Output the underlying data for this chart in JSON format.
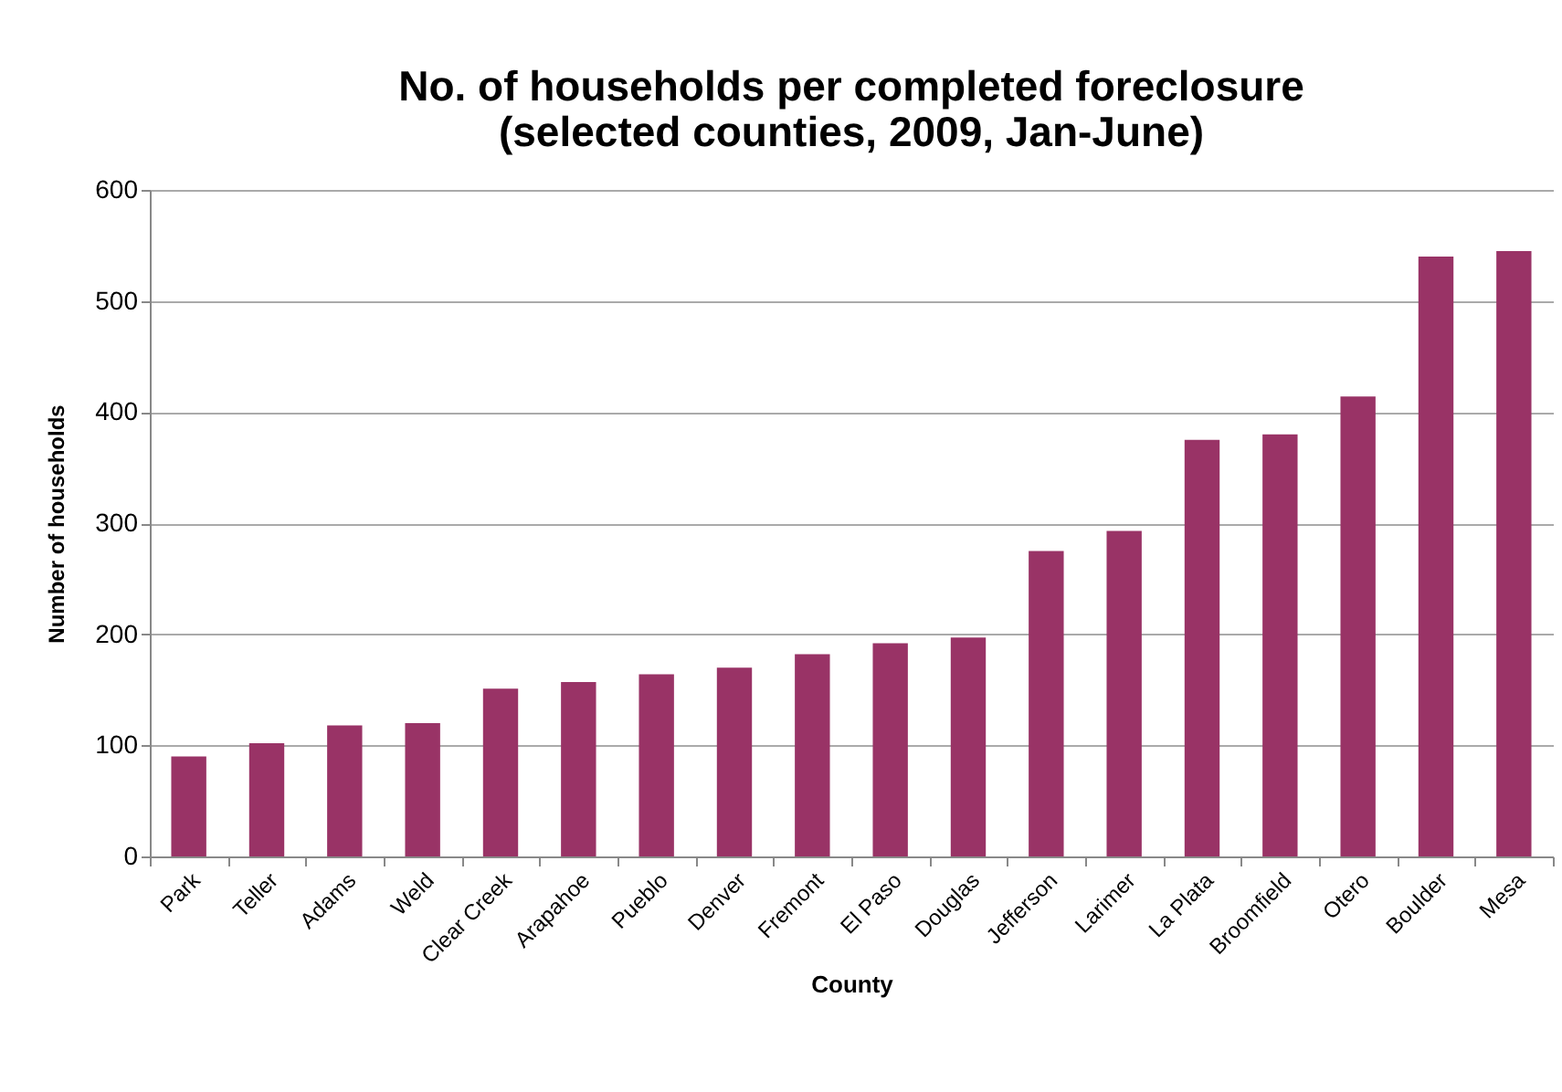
{
  "chart_data": {
    "type": "bar",
    "title": [
      "No. of households per completed foreclosure",
      "(selected counties, 2009, Jan-June)"
    ],
    "xlabel": "County",
    "ylabel": "Number of households",
    "categories": [
      "Park",
      "Teller",
      "Adams",
      "Weld",
      "Clear Creek",
      "Arapahoe",
      "Pueblo",
      "Denver",
      "Fremont",
      "El Paso",
      "Douglas",
      "Jefferson",
      "Larimer",
      "La Plata",
      "Broomfield",
      "Otero",
      "Boulder",
      "Mesa"
    ],
    "values": [
      90,
      102,
      118,
      120,
      151,
      157,
      164,
      170,
      182,
      192,
      197,
      275,
      293,
      375,
      380,
      414,
      540,
      545
    ],
    "color": "#993366",
    "ylim": [
      0,
      600
    ],
    "yticks": [
      0,
      100,
      200,
      300,
      400,
      500,
      600
    ],
    "grid": "y"
  }
}
